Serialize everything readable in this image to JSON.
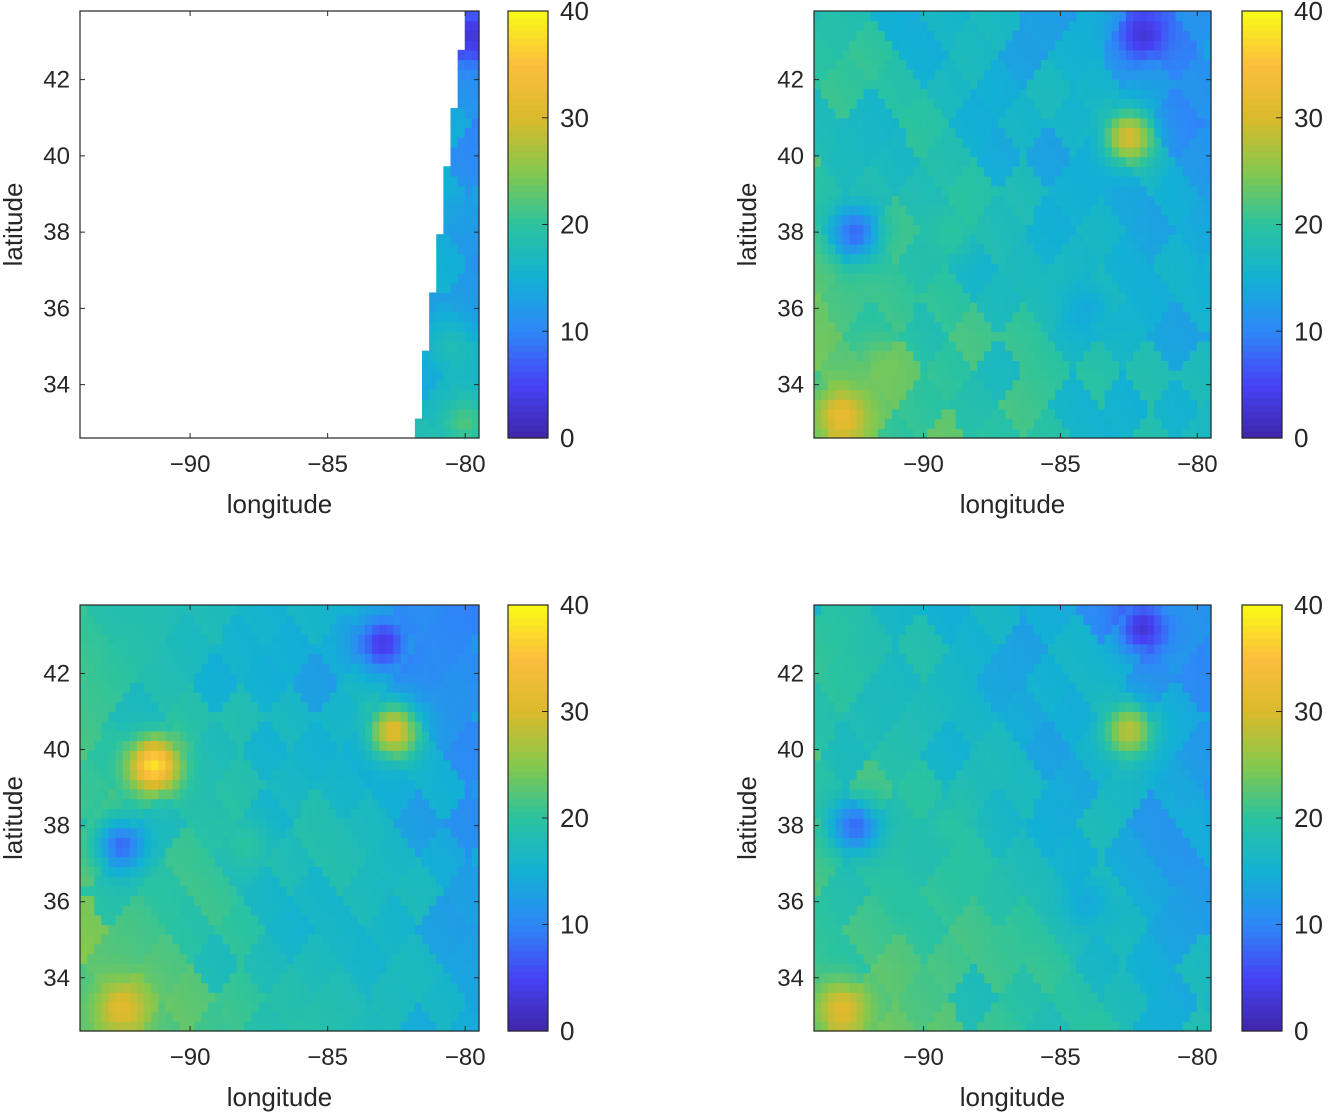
{
  "figure": {
    "colormap": "parula",
    "colormap_stops": [
      "#3e26a8",
      "#4742f5",
      "#2e87f7",
      "#12b1d4",
      "#2ac3a0",
      "#86c84c",
      "#dbba2c",
      "#fcbe3d",
      "#f9fb15"
    ]
  },
  "chart_data": [
    {
      "type": "heatmap",
      "panel": "top-left",
      "xlabel": "longitude",
      "ylabel": "latitude",
      "xlim": [
        -94,
        -79.5
      ],
      "ylim": [
        32.6,
        43.8
      ],
      "xticks": [
        -90,
        -85,
        -80
      ],
      "yticks": [
        34,
        36,
        38,
        40,
        42
      ],
      "xtick_labels": [
        "−90",
        "−85",
        "−80"
      ],
      "ytick_labels": [
        "34",
        "36",
        "38",
        "40",
        "42"
      ],
      "colorbar": {
        "range": [
          0,
          40
        ],
        "ticks": [
          0,
          10,
          20,
          30,
          40
        ],
        "tick_labels": [
          "0",
          "10",
          "20",
          "30",
          "40"
        ]
      },
      "data_extent": "partial swath: valid only east of a boundary running from about -81.8 at lat 32.6 to about -80.0 at lat 43.8",
      "features": [
        {
          "lon": -79.8,
          "lat": 43.2,
          "value": 3,
          "desc": "dark blue pixels at top of swath"
        },
        {
          "lon": -80.3,
          "lat": 38.5,
          "value": 13,
          "desc": "blue swath interior"
        },
        {
          "lon": -80.5,
          "lat": 35.0,
          "value": 18,
          "desc": "teal swath"
        },
        {
          "lon": -80.0,
          "lat": 33.0,
          "value": 22,
          "desc": "green-teal bottom"
        }
      ]
    },
    {
      "type": "heatmap",
      "panel": "top-right",
      "xlabel": "longitude",
      "ylabel": "latitude",
      "xlim": [
        -94,
        -79.5
      ],
      "ylim": [
        32.6,
        43.8
      ],
      "xticks": [
        -90,
        -85,
        -80
      ],
      "yticks": [
        34,
        36,
        38,
        40,
        42
      ],
      "xtick_labels": [
        "−90",
        "−85",
        "−80"
      ],
      "ytick_labels": [
        "34",
        "36",
        "38",
        "40",
        "42"
      ],
      "colorbar": {
        "range": [
          0,
          40
        ],
        "ticks": [
          0,
          10,
          20,
          30,
          40
        ],
        "tick_labels": [
          "0",
          "10",
          "20",
          "30",
          "40"
        ]
      },
      "features": [
        {
          "lon": -93.0,
          "lat": 33.2,
          "value": 32,
          "desc": "orange hot spot, bottom-left"
        },
        {
          "lon": -91.5,
          "lat": 34.5,
          "value": 24,
          "desc": "green region"
        },
        {
          "lon": -89.0,
          "lat": 38.0,
          "value": 20,
          "desc": "teal central area"
        },
        {
          "lon": -84.0,
          "lat": 36.0,
          "value": 14,
          "desc": "blue band"
        },
        {
          "lon": -82.5,
          "lat": 40.5,
          "value": 30,
          "desc": "yellow spot near Columbus"
        },
        {
          "lon": -82.0,
          "lat": 43.2,
          "value": 3,
          "desc": "dark blue north-east"
        },
        {
          "lon": -92.5,
          "lat": 38.0,
          "value": 8,
          "desc": "blue patch"
        }
      ]
    },
    {
      "type": "heatmap",
      "panel": "bottom-left",
      "xlabel": "longitude",
      "ylabel": "latitude",
      "xlim": [
        -94,
        -79.5
      ],
      "ylim": [
        32.6,
        43.8
      ],
      "xticks": [
        -90,
        -85,
        -80
      ],
      "yticks": [
        34,
        36,
        38,
        40,
        42
      ],
      "xtick_labels": [
        "−90",
        "−85",
        "−80"
      ],
      "ytick_labels": [
        "34",
        "36",
        "38",
        "40",
        "42"
      ],
      "colorbar": {
        "range": [
          0,
          40
        ],
        "ticks": [
          0,
          10,
          20,
          30,
          40
        ],
        "tick_labels": [
          "0",
          "10",
          "20",
          "30",
          "40"
        ]
      },
      "features": [
        {
          "lon": -92.5,
          "lat": 33.2,
          "value": 31,
          "desc": "orange hot spot, bottom-left"
        },
        {
          "lon": -91.3,
          "lat": 39.6,
          "value": 38,
          "desc": "bright yellow spot"
        },
        {
          "lon": -82.6,
          "lat": 40.5,
          "value": 31,
          "desc": "orange-yellow spot"
        },
        {
          "lon": -88.0,
          "lat": 37.5,
          "value": 20,
          "desc": "teal-green central"
        },
        {
          "lon": -83.0,
          "lat": 42.8,
          "value": 4,
          "desc": "dark blue north-east"
        },
        {
          "lon": -92.5,
          "lat": 37.5,
          "value": 8,
          "desc": "blue patch west"
        }
      ]
    },
    {
      "type": "heatmap",
      "panel": "bottom-right",
      "xlabel": "longitude",
      "ylabel": "latitude",
      "xlim": [
        -94,
        -79.5
      ],
      "ylim": [
        32.6,
        43.8
      ],
      "xticks": [
        -90,
        -85,
        -80
      ],
      "yticks": [
        34,
        36,
        38,
        40,
        42
      ],
      "xtick_labels": [
        "−90",
        "−85",
        "−80"
      ],
      "ytick_labels": [
        "34",
        "36",
        "38",
        "40",
        "42"
      ],
      "colorbar": {
        "range": [
          0,
          40
        ],
        "ticks": [
          0,
          10,
          20,
          30,
          40
        ],
        "tick_labels": [
          "0",
          "10",
          "20",
          "30",
          "40"
        ]
      },
      "features": [
        {
          "lon": -93.0,
          "lat": 33.2,
          "value": 31,
          "desc": "orange hot spot, bottom-left"
        },
        {
          "lon": -82.5,
          "lat": 40.5,
          "value": 28,
          "desc": "yellow-green spot"
        },
        {
          "lon": -89.0,
          "lat": 38.0,
          "value": 20,
          "desc": "teal central area"
        },
        {
          "lon": -84.0,
          "lat": 36.0,
          "value": 14,
          "desc": "blue band"
        },
        {
          "lon": -82.0,
          "lat": 43.2,
          "value": 3,
          "desc": "dark blue north-east"
        },
        {
          "lon": -92.5,
          "lat": 38.0,
          "value": 8,
          "desc": "blue patch"
        }
      ]
    }
  ]
}
